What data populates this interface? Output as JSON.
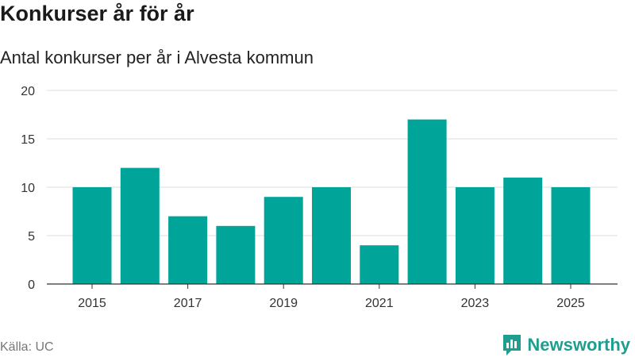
{
  "header": {
    "title": "Konkurser år för år",
    "subtitle": "Antal konkurser per år i Alvesta kommun"
  },
  "footer": {
    "source": "Källa: UC",
    "brand": "Newsworthy"
  },
  "colors": {
    "bar": "#00a499",
    "grid": "#dddddd",
    "axis": "#333333",
    "brand": "#1f9e8f"
  },
  "chart_data": {
    "type": "bar",
    "title": "Konkurser år för år",
    "subtitle": "Antal konkurser per år i Alvesta kommun",
    "categories": [
      2015,
      2016,
      2017,
      2018,
      2019,
      2020,
      2021,
      2022,
      2023,
      2024,
      2025
    ],
    "values": [
      10,
      12,
      7,
      6,
      9,
      10,
      4,
      17,
      10,
      11,
      10
    ],
    "x_tick_labels": [
      "2015",
      "2017",
      "2019",
      "2021",
      "2023",
      "2025"
    ],
    "y_ticks": [
      0,
      5,
      10,
      15,
      20
    ],
    "ylim": [
      0,
      20
    ],
    "xlabel": "",
    "ylabel": "",
    "grid": true,
    "legend": "none"
  }
}
